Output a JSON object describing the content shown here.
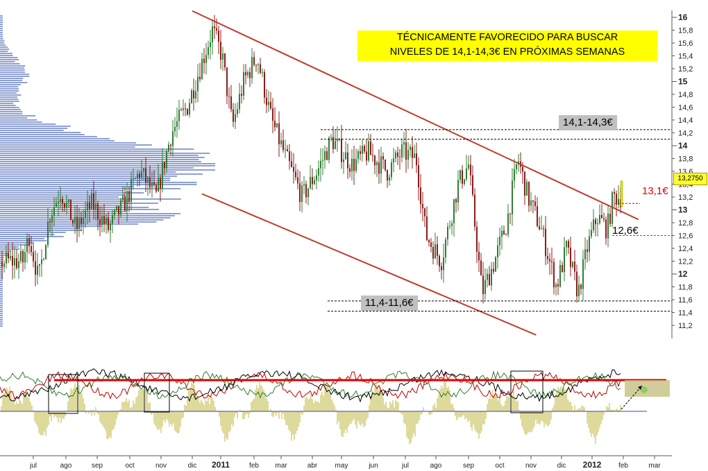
{
  "annotations": {
    "banner_line1": "TÉCNICAMENTE FAVORECIDO PARA BUSCAR",
    "banner_line2": "NIVELES DE 14,1-14,3€ EN PRÓXIMAS SEMANAS",
    "resistance_zone": "14,1-14,3€",
    "support_zone": "11,4-11,6€",
    "level_red": "13,1€",
    "level_support": "12,6€",
    "current_price": "13,2750"
  },
  "colors": {
    "channel": "#c0392b",
    "bull_candle": "#2e7d32",
    "bear_candle": "#8b1a1a",
    "volume_profile": "#7b8fc9",
    "banner_bg": "#ffff00",
    "osc_red_level": "#e00000",
    "osc_histogram": "#bdb53a"
  },
  "chart_data": {
    "type": "candlestick",
    "title": "",
    "y_axis": {
      "min": 11.1,
      "max": 16.1,
      "ticks": [
        "16",
        "15,8",
        "15,6",
        "15,4",
        "15,2",
        "15",
        "14,8",
        "14,6",
        "14,4",
        "14,2",
        "14",
        "13,8",
        "13,6",
        "13,4",
        "13,2",
        "13",
        "12,8",
        "12,6",
        "12,4",
        "12,2",
        "12",
        "11,8",
        "11,6",
        "11,4",
        "11,2"
      ],
      "major_ticks": [
        "16",
        "15",
        "14",
        "13",
        "12"
      ]
    },
    "x_axis": {
      "ticks": [
        "jul",
        "ago",
        "sep",
        "oct",
        "nov",
        "dic",
        "2011",
        "feb",
        "mar",
        "abr",
        "may",
        "jun",
        "jul",
        "ago",
        "sep",
        "oct",
        "nov",
        "dic",
        "2012",
        "feb",
        "mar"
      ],
      "major_ticks": [
        "2011",
        "2012"
      ]
    },
    "price_path": [
      {
        "date": "2010-06-20",
        "close": 12.2
      },
      {
        "date": "2010-07-05",
        "close": 12.6
      },
      {
        "date": "2010-07-20",
        "close": 11.9
      },
      {
        "date": "2010-07-30",
        "close": 12.9
      },
      {
        "date": "2010-08-10",
        "close": 13.3
      },
      {
        "date": "2010-08-25",
        "close": 12.7
      },
      {
        "date": "2010-09-10",
        "close": 13.1
      },
      {
        "date": "2010-09-25",
        "close": 12.7
      },
      {
        "date": "2010-10-10",
        "close": 13.1
      },
      {
        "date": "2010-10-25",
        "close": 13.6
      },
      {
        "date": "2010-11-10",
        "close": 13.2
      },
      {
        "date": "2010-11-25",
        "close": 14.2
      },
      {
        "date": "2010-12-10",
        "close": 14.6
      },
      {
        "date": "2010-12-25",
        "close": 15.3
      },
      {
        "date": "2011-01-05",
        "close": 15.8
      },
      {
        "date": "2011-01-15",
        "close": 15.4
      },
      {
        "date": "2011-01-25",
        "close": 14.3
      },
      {
        "date": "2011-02-05",
        "close": 15.0
      },
      {
        "date": "2011-02-18",
        "close": 15.4
      },
      {
        "date": "2011-03-05",
        "close": 14.4
      },
      {
        "date": "2011-03-20",
        "close": 13.8
      },
      {
        "date": "2011-04-05",
        "close": 13.2
      },
      {
        "date": "2011-04-20",
        "close": 13.6
      },
      {
        "date": "2011-05-05",
        "close": 14.1
      },
      {
        "date": "2011-05-25",
        "close": 13.7
      },
      {
        "date": "2011-06-10",
        "close": 13.9
      },
      {
        "date": "2011-06-28",
        "close": 13.6
      },
      {
        "date": "2011-07-12",
        "close": 13.9
      },
      {
        "date": "2011-07-26",
        "close": 13.8
      },
      {
        "date": "2011-08-05",
        "close": 12.6
      },
      {
        "date": "2011-08-20",
        "close": 12.2
      },
      {
        "date": "2011-09-05",
        "close": 13.4
      },
      {
        "date": "2011-09-15",
        "close": 13.7
      },
      {
        "date": "2011-09-28",
        "close": 11.7
      },
      {
        "date": "2011-10-10",
        "close": 12.2
      },
      {
        "date": "2011-10-22",
        "close": 12.8
      },
      {
        "date": "2011-11-02",
        "close": 13.8
      },
      {
        "date": "2011-11-12",
        "close": 13.2
      },
      {
        "date": "2011-11-25",
        "close": 12.7
      },
      {
        "date": "2011-12-10",
        "close": 11.8
      },
      {
        "date": "2011-12-20",
        "close": 12.4
      },
      {
        "date": "2012-01-01",
        "close": 11.7
      },
      {
        "date": "2012-01-10",
        "close": 12.4
      },
      {
        "date": "2012-01-20",
        "close": 12.9
      },
      {
        "date": "2012-01-30",
        "close": 12.7
      },
      {
        "date": "2012-02-05",
        "close": 13.2
      }
    ],
    "channel_upper": [
      {
        "date": "2010-12-15",
        "value": 16.1
      },
      {
        "date": "2012-02-29",
        "value": 12.85
      }
    ],
    "channel_lower": [
      {
        "date": "2010-12-25",
        "value": 13.25
      },
      {
        "date": "2011-11-20",
        "value": 11.05
      }
    ],
    "horizontal_levels": [
      {
        "value": 14.25,
        "style": "dashed",
        "color": "#000"
      },
      {
        "value": 14.1,
        "style": "dashed",
        "color": "#000"
      },
      {
        "value": 11.58,
        "style": "dashed",
        "color": "#000"
      },
      {
        "value": 11.42,
        "style": "dashed",
        "color": "#000"
      },
      {
        "value": 13.1,
        "style": "dashed",
        "color": "#e00000"
      },
      {
        "value": 12.6,
        "style": "dashed",
        "color": "#2e7d32"
      }
    ],
    "oscillator_panel": {
      "series": [
        "red",
        "green",
        "black",
        "histogram"
      ],
      "red_level_line": true,
      "highlight_boxes": 4
    }
  }
}
